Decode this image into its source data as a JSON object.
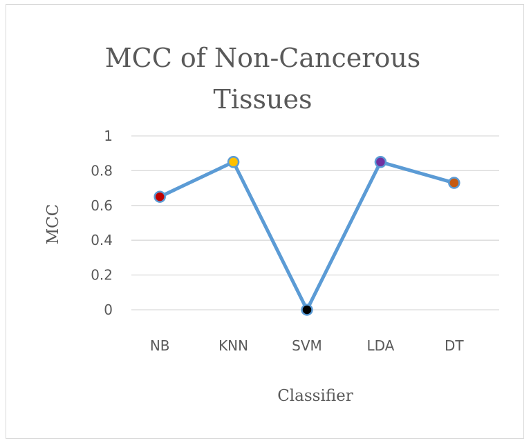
{
  "chart_data": {
    "type": "line",
    "title_lines": [
      "MCC of Non-Cancerous",
      "Tissues"
    ],
    "xlabel": "Classifier",
    "ylabel": "MCC",
    "categories": [
      "NB",
      "KNN",
      "SVM",
      "LDA",
      "DT"
    ],
    "series": [
      {
        "values": [
          0.65,
          0.85,
          0.0,
          0.85,
          0.73
        ],
        "line_color": "#5b9bd5",
        "marker_colors": [
          "#c00000",
          "#ffc000",
          "#000000",
          "#7030a0",
          "#c55a11"
        ]
      }
    ],
    "ylim": [
      0,
      1
    ],
    "yticks": [
      "0",
      "0.2",
      "0.4",
      "0.6",
      "0.8",
      "1"
    ],
    "grid": true,
    "gridline_color": "#d9d9d9",
    "legend": "none"
  }
}
